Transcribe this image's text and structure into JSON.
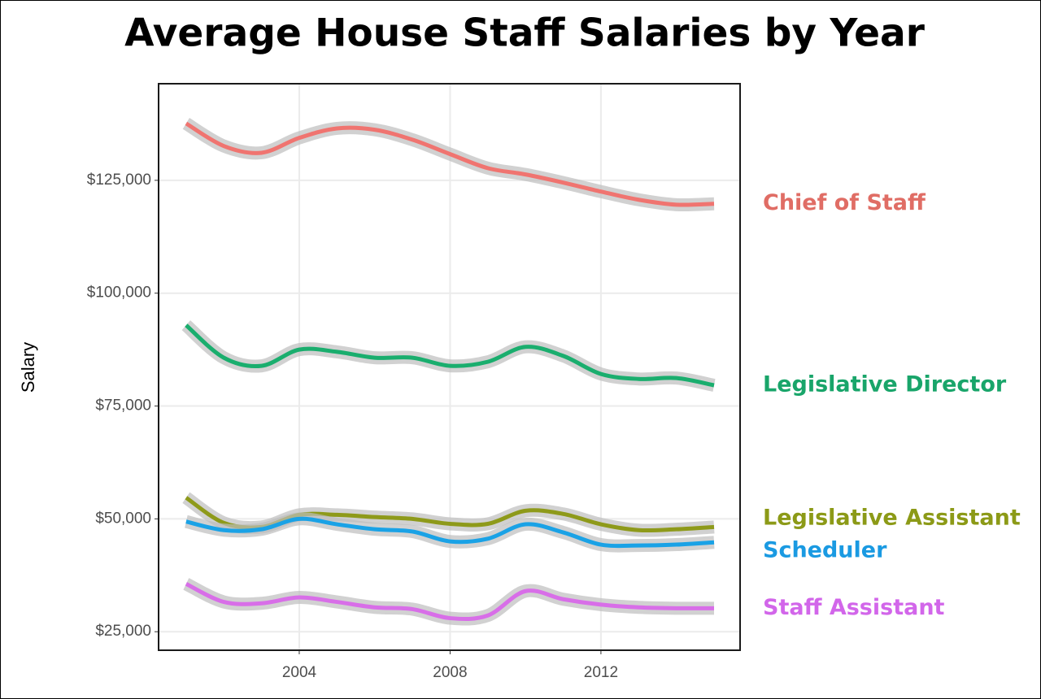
{
  "chart_data": {
    "type": "line",
    "title": "Average House Staff Salaries by Year",
    "y_label": "Salary",
    "x": [
      2001,
      2002,
      2003,
      2004,
      2005,
      2006,
      2007,
      2008,
      2009,
      2010,
      2011,
      2012,
      2013,
      2014,
      2015
    ],
    "xlim": [
      2000.27,
      2015.69
    ],
    "xticks": [
      2004,
      2008,
      2012
    ],
    "ylim": [
      20900,
      146400
    ],
    "yticks": [
      {
        "value": 25000,
        "label": "$25,000"
      },
      {
        "value": 50000,
        "label": "$50,000"
      },
      {
        "value": 75000,
        "label": "$75,000"
      },
      {
        "value": 100000,
        "label": "$100,000"
      },
      {
        "value": 125000,
        "label": "$125,000"
      }
    ],
    "grid": true,
    "series": [
      {
        "name": "Chief of Staff",
        "color": "#f07470",
        "label_color": "#e06d65",
        "values": [
          137600,
          132600,
          131100,
          134400,
          136500,
          136200,
          134000,
          130800,
          127700,
          126300,
          124500,
          122500,
          120700,
          119600,
          119800
        ]
      },
      {
        "name": "Legislative Director",
        "color": "#1aae6e",
        "label_color": "#19a56a",
        "values": [
          92900,
          85700,
          83900,
          87500,
          87000,
          85700,
          85700,
          83900,
          84800,
          88100,
          86100,
          82100,
          81000,
          81200,
          79600
        ]
      },
      {
        "name": "Legislative Assistant",
        "color": "#8e9a1a",
        "label_color": "#8c9a17",
        "values": [
          54700,
          49100,
          48200,
          50900,
          50900,
          50400,
          50000,
          48900,
          48900,
          51800,
          51100,
          48800,
          47500,
          47700,
          48200
        ]
      },
      {
        "name": "Scheduler",
        "color": "#1aa2e6",
        "label_color": "#1a9ae2",
        "values": [
          49400,
          47500,
          47700,
          50000,
          48800,
          47700,
          47200,
          45000,
          45600,
          48800,
          47000,
          44300,
          44100,
          44300,
          44800
        ]
      },
      {
        "name": "Staff Assistant",
        "color": "#d86ee8",
        "label_color": "#d266ea",
        "values": [
          35600,
          31600,
          31300,
          32600,
          31600,
          30400,
          30000,
          28000,
          28600,
          34000,
          32200,
          31000,
          30400,
          30200,
          30200
        ]
      }
    ]
  }
}
